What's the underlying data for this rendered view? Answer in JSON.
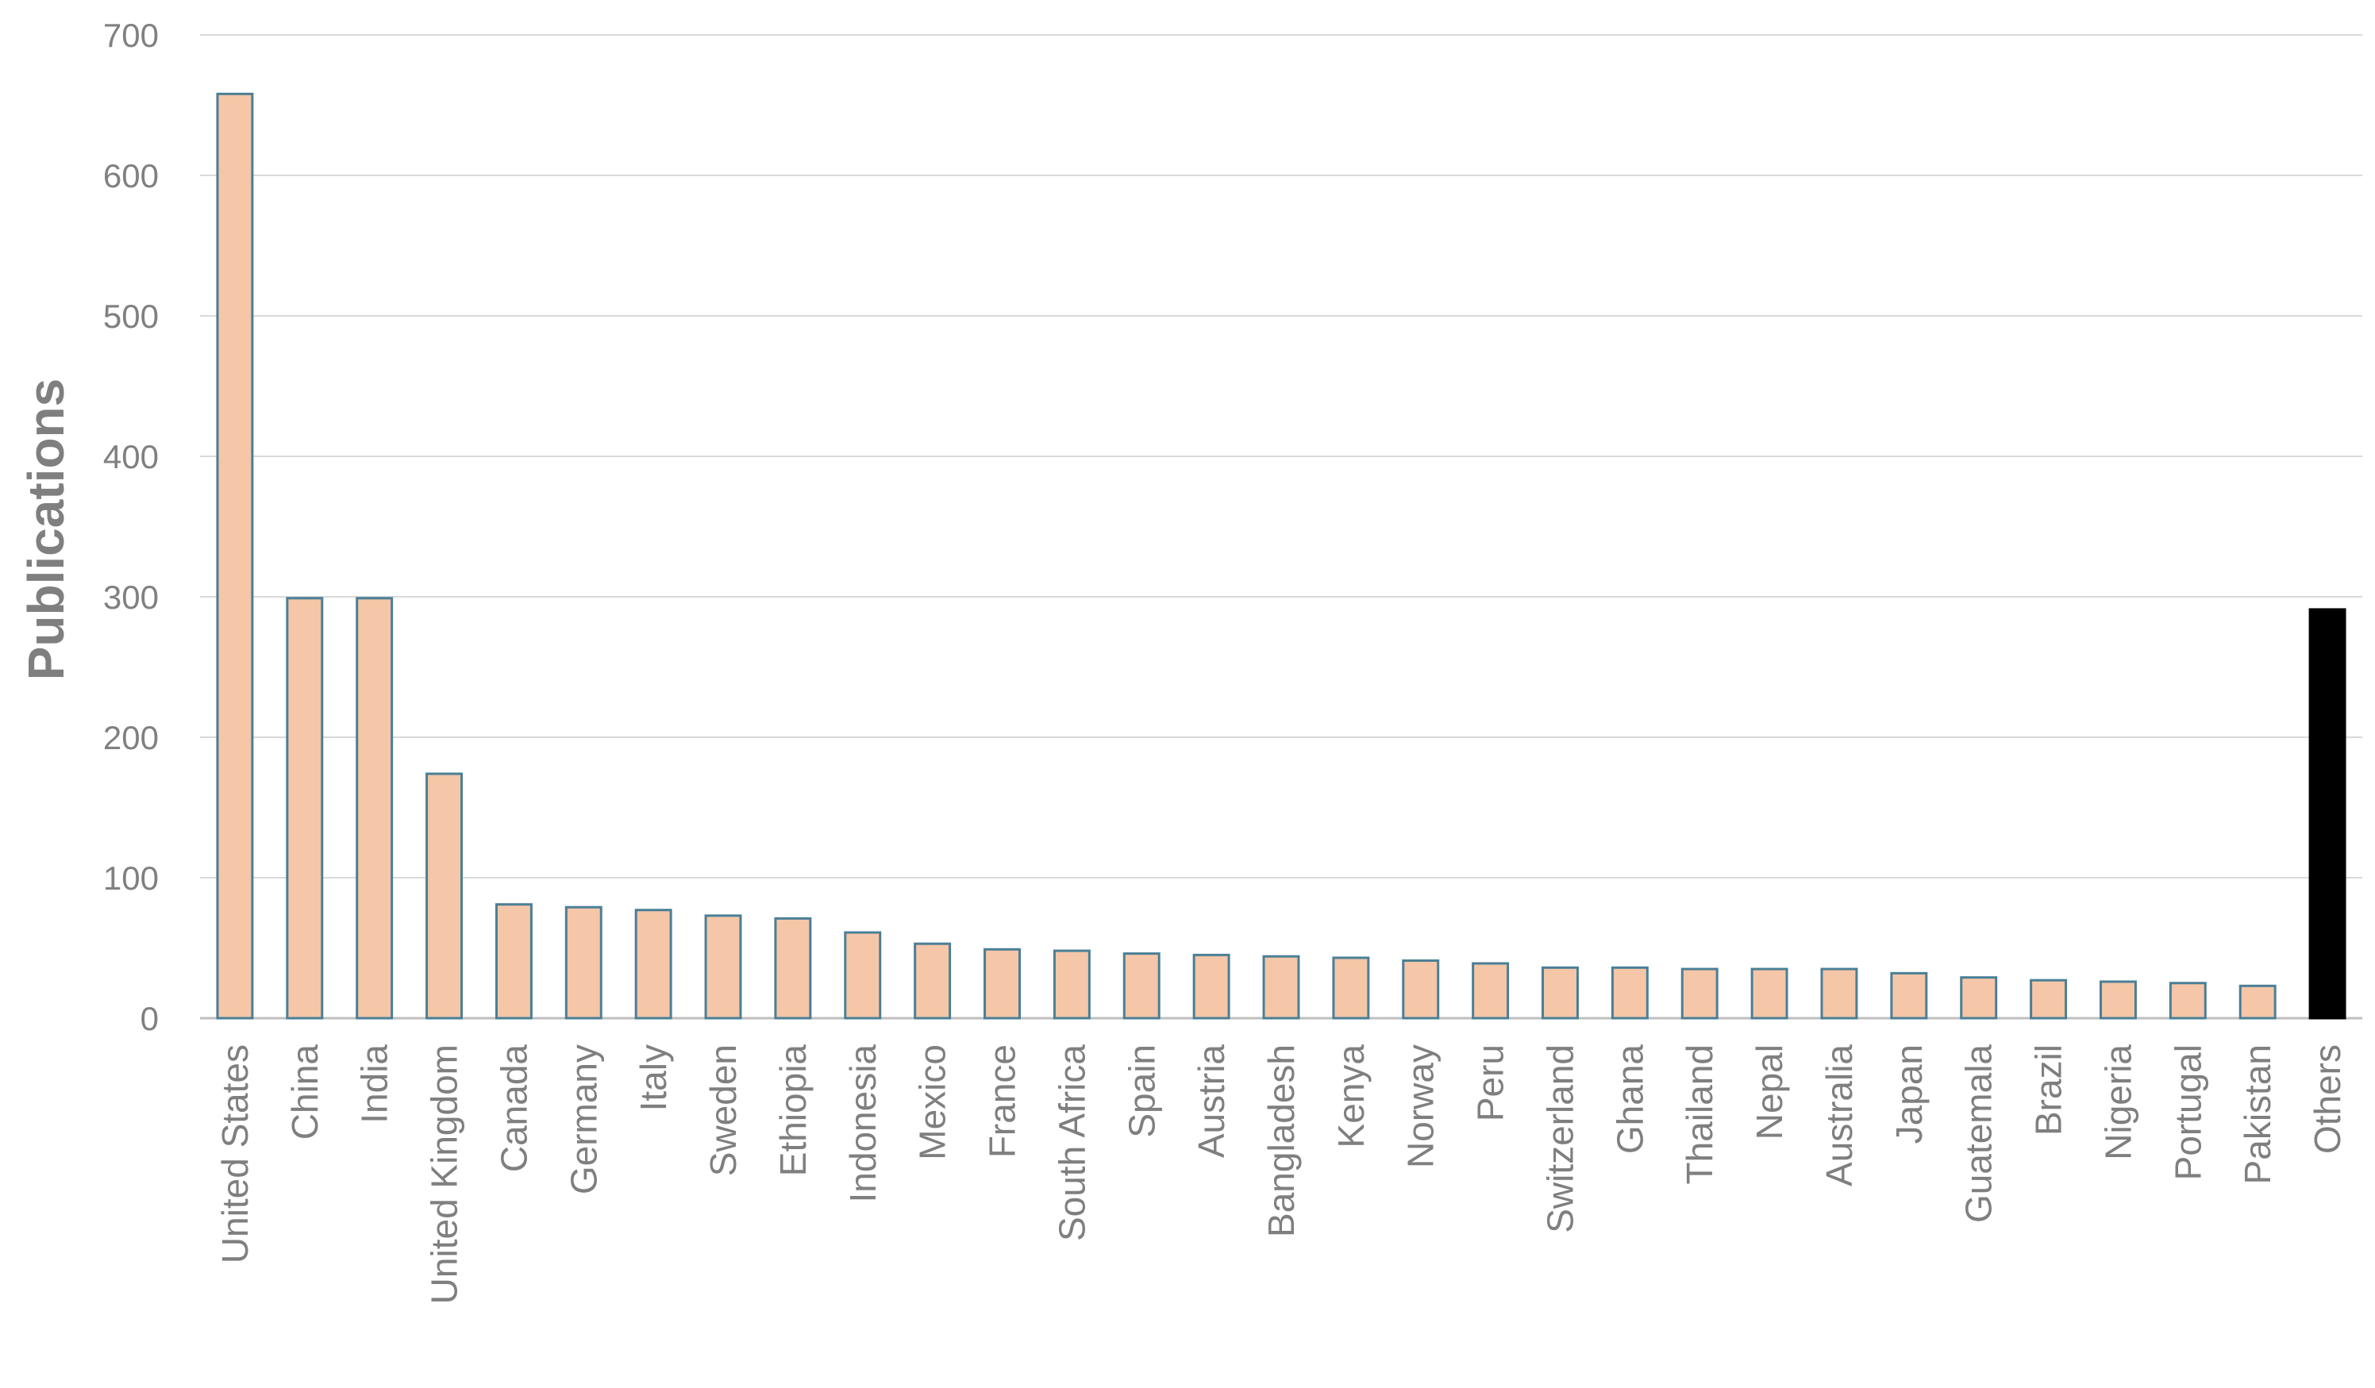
{
  "chart_data": {
    "type": "bar",
    "ylabel": "Publications",
    "xlabel": "",
    "ylim": [
      0,
      700
    ],
    "yticks": [
      "0",
      "100",
      "200",
      "300",
      "400",
      "500",
      "600",
      "700"
    ],
    "grid": true,
    "categories": [
      "United States",
      "China",
      "India",
      "United Kingdom",
      "Canada",
      "Germany",
      "Italy",
      "Sweden",
      "Ethiopia",
      "Indonesia",
      "Mexico",
      "France",
      "South Africa",
      "Spain",
      "Austria",
      "Bangladesh",
      "Kenya",
      "Norway",
      "Peru",
      "Switzerland",
      "Ghana",
      "Thailand",
      "Nepal",
      "Australia",
      "Japan",
      "Guatemala",
      "Brazil",
      "Nigeria",
      "Portugal",
      "Pakistan",
      "Others"
    ],
    "values": [
      658,
      299,
      299,
      174,
      81,
      79,
      77,
      73,
      71,
      61,
      53,
      49,
      48,
      46,
      45,
      44,
      43,
      41,
      39,
      36,
      36,
      35,
      35,
      35,
      32,
      29,
      27,
      26,
      25,
      23,
      291
    ],
    "colors": {
      "bar_fill": "#f5c6a8",
      "bar_stroke": "#4a7f96",
      "highlight_fill": "#000000",
      "grid": "#d9d9d9",
      "axis": "#bfbfbf"
    },
    "highlight_category": "Others"
  }
}
